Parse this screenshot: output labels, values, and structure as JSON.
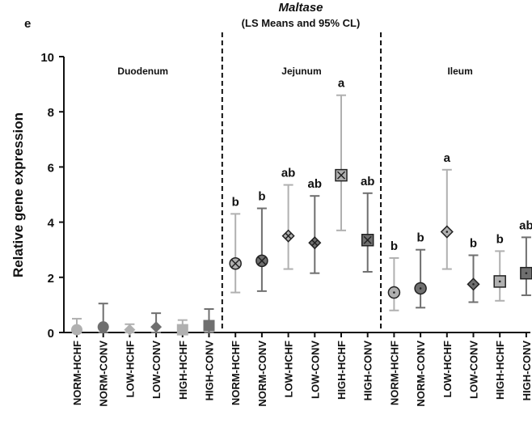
{
  "chart_data": {
    "type": "errorbar",
    "panel_label": "e",
    "title": "Maltase",
    "subtitle": "(LS Means and 95% CL)",
    "y_label": "Relative gene expression",
    "ylim": [
      0,
      10
    ],
    "yticks": [
      0,
      2,
      4,
      6,
      8,
      10
    ],
    "categories": [
      "NORM-HCHF",
      "NORM-CONV",
      "LOW-HCHF",
      "LOW-CONV",
      "HIGH-HCHF",
      "HIGH-CONV",
      "NORM-HCHF",
      "NORM-CONV",
      "LOW-HCHF",
      "LOW-CONV",
      "HIGH-HCHF",
      "HIGH-CONV",
      "NORM-HCHF",
      "NORM-CONV",
      "LOW-HCHF",
      "LOW-CONV",
      "HIGH-HCHF",
      "HIGH-CONV"
    ],
    "values": [
      0.1,
      0.2,
      0.1,
      0.2,
      0.1,
      0.25,
      2.5,
      2.6,
      3.5,
      3.25,
      5.7,
      3.35,
      1.45,
      1.6,
      3.65,
      1.75,
      1.85,
      2.15
    ],
    "lower": [
      0,
      0,
      0,
      0,
      0,
      0,
      1.45,
      1.5,
      2.3,
      2.15,
      3.7,
      2.2,
      0.8,
      0.9,
      2.3,
      1.1,
      1.15,
      1.35
    ],
    "upper": [
      0.5,
      1.05,
      0.3,
      0.7,
      0.45,
      0.85,
      4.3,
      4.5,
      5.35,
      4.95,
      8.6,
      5.05,
      2.7,
      3.0,
      5.9,
      2.8,
      2.95,
      3.45
    ],
    "letters": [
      null,
      null,
      null,
      null,
      null,
      null,
      "b",
      "b",
      "ab",
      "ab",
      "a",
      "ab",
      "b",
      "b",
      "a",
      "b",
      "b",
      "ab"
    ],
    "shapes": [
      "circle",
      "circle",
      "diamond",
      "diamond",
      "square",
      "square",
      "circle",
      "circle",
      "diamond",
      "diamond",
      "square",
      "square",
      "circle",
      "circle",
      "diamond",
      "diamond",
      "square",
      "square"
    ],
    "colors": [
      "#b0b0b0",
      "#6f6f6f",
      "#b0b0b0",
      "#6f6f6f",
      "#b0b0b0",
      "#6f6f6f",
      "#b0b0b0",
      "#6f6f6f",
      "#b0b0b0",
      "#6f6f6f",
      "#b0b0b0",
      "#6f6f6f",
      "#b0b0b0",
      "#6f6f6f",
      "#b0b0b0",
      "#6f6f6f",
      "#b0b0b0",
      "#6f6f6f"
    ],
    "groups": [
      {
        "name": "Duodenum",
        "style": "solid"
      },
      {
        "name": "Jejunum",
        "style": "cross"
      },
      {
        "name": "Ileum",
        "style": "dot"
      }
    ]
  }
}
